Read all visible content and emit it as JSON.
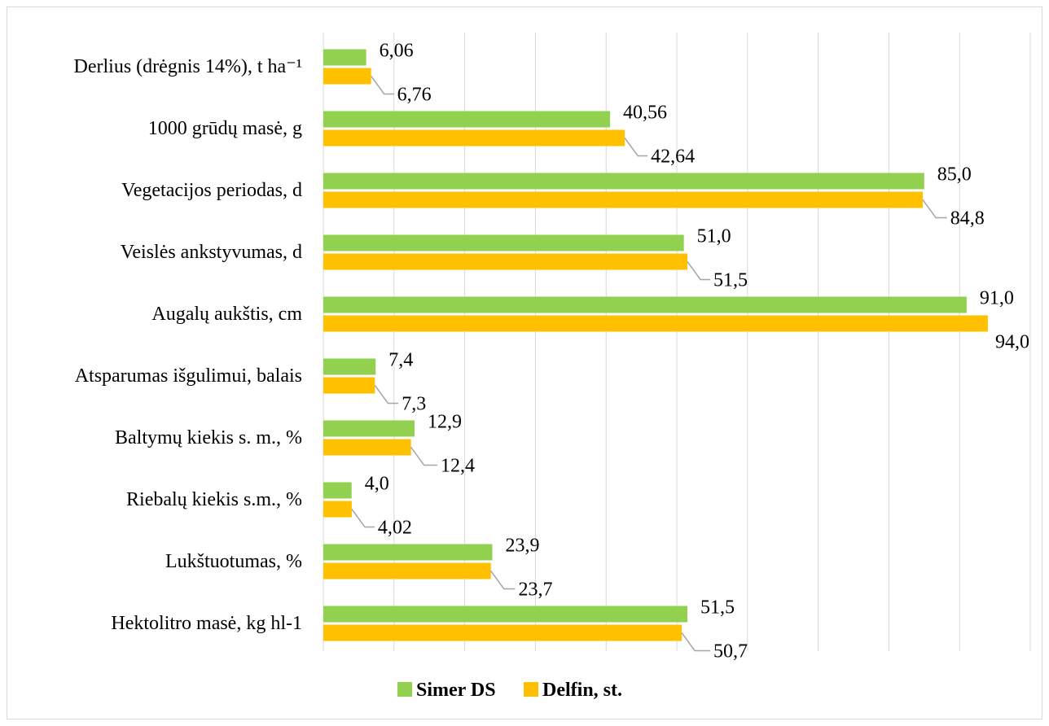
{
  "chart_data": {
    "type": "bar",
    "orientation": "horizontal",
    "categories": [
      "Derlius (drėgnis 14%), t ha⁻¹",
      "1000 grūdų masė, g",
      "Vegetacijos periodas, d",
      "Veislės ankstyvumas, d",
      "Augalų aukštis, cm",
      "Atsparumas išgulimui, balais",
      "Baltymų kiekis s. m., %",
      "Riebalų kiekis s.m., %",
      "Lukštuotumas, %",
      "Hektolitro masė, kg hl-1"
    ],
    "series": [
      {
        "name": "Simer DS",
        "color": "#92d050",
        "values": [
          6.06,
          40.56,
          85.0,
          51.0,
          91.0,
          7.4,
          12.9,
          4.0,
          23.9,
          51.5
        ],
        "labels": [
          "6,06",
          "40,56",
          "85,0",
          "51,0",
          "91,0",
          "7,4",
          "12,9",
          "4,0",
          "23,9",
          "51,5"
        ]
      },
      {
        "name": "Delfin, st.",
        "color": "#ffc000",
        "values": [
          6.76,
          42.64,
          84.8,
          51.5,
          94.0,
          7.3,
          12.4,
          4.02,
          23.7,
          50.7
        ],
        "labels": [
          "6,76",
          "42,64",
          "84,8",
          "51,5",
          "94,0",
          "7,3",
          "12,4",
          "4,02",
          "23,7",
          "50,7"
        ]
      }
    ],
    "xlim": [
      0,
      100
    ],
    "grid": true,
    "legend_position": "bottom"
  }
}
